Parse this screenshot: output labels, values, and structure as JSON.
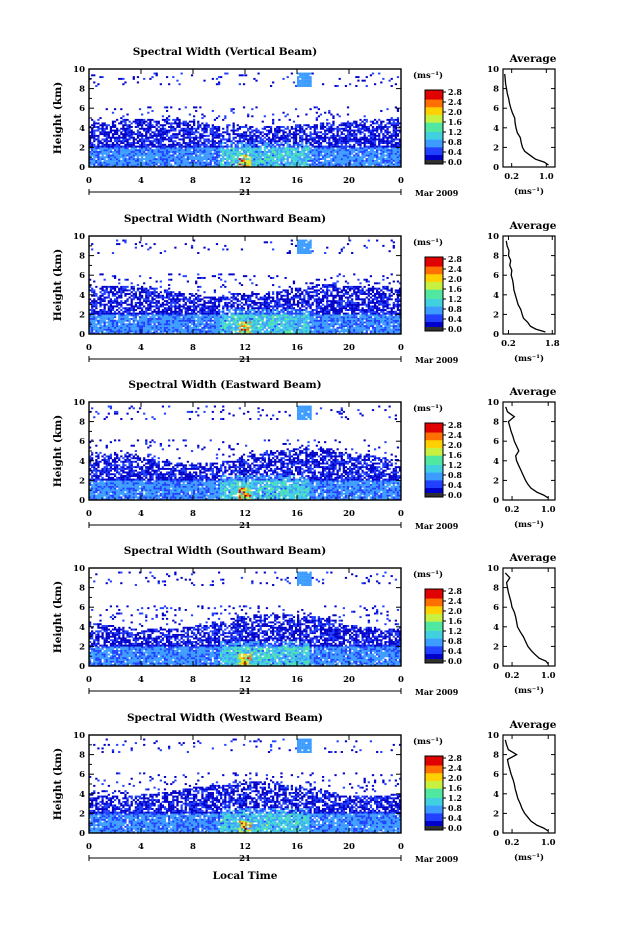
{
  "figure": {
    "xlabel": "Local Time",
    "date_label": "Mar 2009",
    "day_label": "21",
    "colorbar_unit": "(ms⁻¹)",
    "profile_title": "Average",
    "profile_xlabel": "(ms⁻¹)"
  },
  "palette": [
    "#f0f0f0",
    "#0000c8",
    "#2040ff",
    "#3c9cff",
    "#40d0e0",
    "#50e8a0",
    "#c8f040",
    "#ffd000",
    "#ff7000",
    "#e00000"
  ],
  "chart_data": [
    {
      "type": "heatmap",
      "title": "Spectral Width (Vertical Beam)",
      "ylabel": "Height (km)",
      "x_ticks": [
        "0",
        "4",
        "8",
        "12",
        "16",
        "20",
        "0"
      ],
      "y_ticks": [
        "0",
        "2",
        "4",
        "6",
        "8",
        "10"
      ],
      "xlim": [
        0,
        24
      ],
      "ylim": [
        0,
        10
      ],
      "colorbar_ticks": [
        "0.0",
        "0.4",
        "0.8",
        "1.2",
        "1.6",
        "2.0",
        "2.4",
        "2.8"
      ],
      "clim": [
        0,
        2.8
      ],
      "profile": {
        "title": "Average",
        "xlabel": "(ms⁻¹)",
        "x_ticks": [
          "0.2",
          "1.0"
        ],
        "xlim": [
          0,
          1.2
        ],
        "y_ticks": [
          "0",
          "2",
          "4",
          "6",
          "8",
          "10"
        ],
        "height_km": [
          0.2,
          0.5,
          0.8,
          1.2,
          1.6,
          2.0,
          2.5,
          3.0,
          3.5,
          4.0,
          4.5,
          5.0,
          5.5,
          6.0,
          6.5,
          7.0,
          7.5,
          8.0,
          8.5,
          9.0,
          9.5
        ],
        "width_ms": [
          1.05,
          0.95,
          0.75,
          0.62,
          0.5,
          0.45,
          0.42,
          0.4,
          0.33,
          0.3,
          0.28,
          0.27,
          0.22,
          0.18,
          0.15,
          0.13,
          0.1,
          0.08,
          0.06,
          0.05,
          0.04
        ]
      }
    },
    {
      "type": "heatmap",
      "title": "Spectral Width (Northward Beam)",
      "ylabel": "Height (km)",
      "x_ticks": [
        "0",
        "4",
        "8",
        "12",
        "16",
        "20",
        "0"
      ],
      "y_ticks": [
        "0",
        "2",
        "4",
        "6",
        "8",
        "10"
      ],
      "xlim": [
        0,
        24
      ],
      "ylim": [
        0,
        10
      ],
      "colorbar_ticks": [
        "0.0",
        "0.4",
        "0.8",
        "1.2",
        "1.6",
        "2.0",
        "2.4",
        "2.8"
      ],
      "clim": [
        0,
        2.8
      ],
      "profile": {
        "title": "Average",
        "xlabel": "(ms⁻¹)",
        "x_ticks": [
          "0.2",
          "1.8"
        ],
        "xlim": [
          0,
          1.9
        ],
        "y_ticks": [
          "0",
          "2",
          "4",
          "6",
          "8",
          "10"
        ],
        "height_km": [
          0.2,
          0.5,
          0.8,
          1.2,
          1.6,
          2.0,
          2.5,
          3.0,
          3.5,
          4.0,
          4.5,
          5.0,
          5.5,
          6.0,
          6.5,
          7.0,
          7.5,
          8.0,
          8.5,
          9.0,
          9.5
        ],
        "width_ms": [
          1.55,
          1.2,
          1.0,
          0.9,
          0.75,
          0.7,
          0.65,
          0.55,
          0.5,
          0.45,
          0.4,
          0.38,
          0.35,
          0.3,
          0.32,
          0.25,
          0.28,
          0.2,
          0.22,
          0.15,
          0.12
        ]
      }
    },
    {
      "type": "heatmap",
      "title": "Spectral Width (Eastward Beam)",
      "ylabel": "Height (km)",
      "x_ticks": [
        "0",
        "4",
        "8",
        "12",
        "16",
        "20",
        "0"
      ],
      "y_ticks": [
        "0",
        "2",
        "4",
        "6",
        "8",
        "10"
      ],
      "xlim": [
        0,
        24
      ],
      "ylim": [
        0,
        10
      ],
      "colorbar_ticks": [
        "0.0",
        "0.4",
        "0.8",
        "1.2",
        "1.6",
        "2.0",
        "2.4",
        "2.8"
      ],
      "clim": [
        0,
        2.8
      ],
      "profile": {
        "title": "Average",
        "xlabel": "(ms⁻¹)",
        "x_ticks": [
          "0.2",
          "1.0"
        ],
        "xlim": [
          0,
          1.15
        ],
        "y_ticks": [
          "0",
          "2",
          "4",
          "6",
          "8",
          "10"
        ],
        "height_km": [
          0.2,
          0.5,
          0.8,
          1.2,
          1.6,
          2.0,
          2.5,
          3.0,
          3.5,
          4.0,
          4.5,
          5.0,
          5.5,
          6.0,
          6.5,
          7.0,
          7.5,
          8.0,
          8.5,
          9.0,
          9.5
        ],
        "width_ms": [
          1.0,
          0.9,
          0.75,
          0.62,
          0.55,
          0.5,
          0.45,
          0.4,
          0.35,
          0.3,
          0.28,
          0.35,
          0.3,
          0.25,
          0.22,
          0.18,
          0.15,
          0.12,
          0.25,
          0.1,
          0.06
        ]
      }
    },
    {
      "type": "heatmap",
      "title": "Spectral Width (Southward Beam)",
      "ylabel": "Height (km)",
      "x_ticks": [
        "0",
        "4",
        "8",
        "12",
        "16",
        "20",
        "0"
      ],
      "y_ticks": [
        "0",
        "2",
        "4",
        "6",
        "8",
        "10"
      ],
      "xlim": [
        0,
        24
      ],
      "ylim": [
        0,
        10
      ],
      "colorbar_ticks": [
        "0.0",
        "0.4",
        "0.8",
        "1.2",
        "1.6",
        "2.0",
        "2.4",
        "2.8"
      ],
      "clim": [
        0,
        2.8
      ],
      "profile": {
        "title": "Average",
        "xlabel": "(ms⁻¹)",
        "x_ticks": [
          "0.2",
          "1.0"
        ],
        "xlim": [
          0,
          1.15
        ],
        "y_ticks": [
          "0",
          "2",
          "4",
          "6",
          "8",
          "10"
        ],
        "height_km": [
          0.2,
          0.5,
          0.8,
          1.2,
          1.6,
          2.0,
          2.5,
          3.0,
          3.5,
          4.0,
          4.5,
          5.0,
          5.5,
          6.0,
          6.5,
          7.0,
          7.5,
          8.0,
          8.5,
          9.0,
          9.5
        ],
        "width_ms": [
          1.0,
          0.95,
          0.8,
          0.7,
          0.62,
          0.55,
          0.5,
          0.45,
          0.38,
          0.32,
          0.3,
          0.28,
          0.25,
          0.2,
          0.18,
          0.15,
          0.12,
          0.1,
          0.08,
          0.15,
          0.05
        ]
      }
    },
    {
      "type": "heatmap",
      "title": "Spectral Width (Westward Beam)",
      "ylabel": "Height (km)",
      "x_ticks": [
        "0",
        "4",
        "8",
        "12",
        "16",
        "20",
        "0"
      ],
      "y_ticks": [
        "0",
        "2",
        "4",
        "6",
        "8",
        "10"
      ],
      "xlim": [
        0,
        24
      ],
      "ylim": [
        0,
        10
      ],
      "colorbar_ticks": [
        "0.0",
        "0.4",
        "0.8",
        "1.2",
        "1.6",
        "2.0",
        "2.4",
        "2.8"
      ],
      "clim": [
        0,
        2.8
      ],
      "profile": {
        "title": "Average",
        "xlabel": "(ms⁻¹)",
        "x_ticks": [
          "0.2",
          "1.0"
        ],
        "xlim": [
          0,
          1.15
        ],
        "y_ticks": [
          "0",
          "2",
          "4",
          "6",
          "8",
          "10"
        ],
        "height_km": [
          0.2,
          0.5,
          0.8,
          1.2,
          1.6,
          2.0,
          2.5,
          3.0,
          3.5,
          4.0,
          4.5,
          5.0,
          5.5,
          6.0,
          6.5,
          7.0,
          7.5,
          8.0,
          8.5,
          9.0,
          9.5
        ],
        "width_ms": [
          1.0,
          0.9,
          0.75,
          0.62,
          0.55,
          0.48,
          0.42,
          0.38,
          0.33,
          0.3,
          0.27,
          0.25,
          0.22,
          0.18,
          0.15,
          0.12,
          0.1,
          0.3,
          0.12,
          0.08,
          0.05
        ]
      }
    }
  ]
}
